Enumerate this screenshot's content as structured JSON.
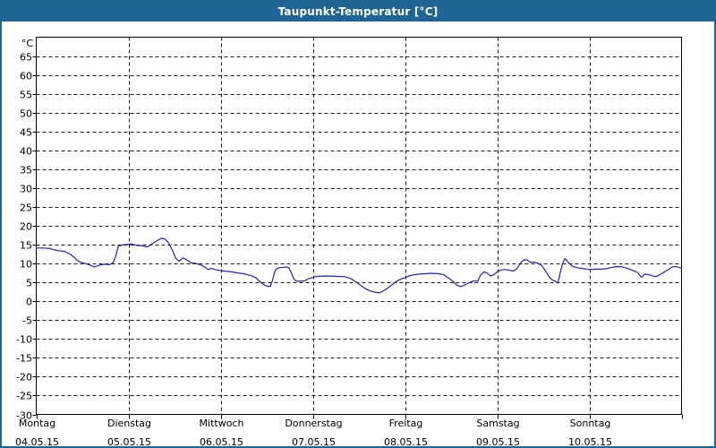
{
  "window": {
    "title": "Taupunkt-Temperatur [°C]"
  },
  "colors": {
    "titlebar_bg": "#1e6494",
    "titlebar_text": "#ffffff",
    "frame_border": "#1e6494",
    "page_bg": "#fbfefb",
    "plot_bg": "#fdfffd",
    "grid": "#1a1a1a",
    "axis": "#000000",
    "label_text": "#000000",
    "line": "#2121c1"
  },
  "chart_data": {
    "type": "line",
    "title": "Taupunkt-Temperatur [°C]",
    "xlabel": "",
    "ylabel": "°C",
    "ylim": [
      -30,
      70
    ],
    "ytick_start": -30,
    "ytick_end": 65,
    "ytick_step": 5,
    "yticks": [
      65,
      60,
      55,
      50,
      45,
      40,
      35,
      30,
      25,
      20,
      15,
      10,
      5,
      0,
      -5,
      -10,
      -15,
      -20,
      -25,
      -30
    ],
    "grid": "dashed",
    "legend": "none",
    "x_hours_total": 168,
    "x_days": [
      {
        "name": "Montag",
        "date": "04.05.15"
      },
      {
        "name": "Dienstag",
        "date": "05.05.15"
      },
      {
        "name": "Mittwoch",
        "date": "06.05.15"
      },
      {
        "name": "Donnerstag",
        "date": "07.05.15"
      },
      {
        "name": "Freitag",
        "date": "08.05.15"
      },
      {
        "name": "Samstag",
        "date": "09.05.15"
      },
      {
        "name": "Sonntag",
        "date": "10.05.15"
      }
    ],
    "series": [
      {
        "name": "Taupunkt-Temperatur",
        "color": "#2121c1",
        "points": [
          [
            0,
            14.1
          ],
          [
            1.9,
            14.1
          ],
          [
            3.5,
            14.0
          ],
          [
            4.7,
            13.6
          ],
          [
            5.8,
            13.4
          ],
          [
            7.4,
            13.2
          ],
          [
            8.8,
            12.5
          ],
          [
            9.8,
            11.7
          ],
          [
            10.7,
            10.8
          ],
          [
            11.6,
            10.3
          ],
          [
            12.8,
            10.0
          ],
          [
            14,
            9.6
          ],
          [
            15.1,
            9.1
          ],
          [
            16.3,
            9.5
          ],
          [
            17.7,
            9.8
          ],
          [
            19.1,
            9.7
          ],
          [
            20,
            10.2
          ],
          [
            20.7,
            12.0
          ],
          [
            21.4,
            14.6
          ],
          [
            22.3,
            14.9
          ],
          [
            23.3,
            15.0
          ],
          [
            24,
            15.1
          ],
          [
            24.9,
            15.2
          ],
          [
            26.1,
            14.8
          ],
          [
            27.5,
            14.7
          ],
          [
            28.9,
            14.4
          ],
          [
            30.3,
            15.3
          ],
          [
            31.7,
            16.2
          ],
          [
            32.6,
            16.7
          ],
          [
            33.5,
            16.5
          ],
          [
            34.4,
            15.5
          ],
          [
            35.4,
            13.6
          ],
          [
            36.3,
            11.4
          ],
          [
            37.2,
            10.6
          ],
          [
            38.2,
            11.5
          ],
          [
            39.1,
            11.0
          ],
          [
            40.3,
            10.2
          ],
          [
            41.7,
            10.0
          ],
          [
            43.1,
            9.5
          ],
          [
            44,
            9.0
          ],
          [
            44.7,
            8.4
          ],
          [
            45.6,
            8.7
          ],
          [
            46.5,
            8.4
          ],
          [
            47.9,
            8.1
          ],
          [
            48.9,
            8.0
          ],
          [
            50.8,
            7.8
          ],
          [
            52.4,
            7.5
          ],
          [
            54,
            7.3
          ],
          [
            55.9,
            6.8
          ],
          [
            57.1,
            6.3
          ],
          [
            58.2,
            5.2
          ],
          [
            59.2,
            4.4
          ],
          [
            60.3,
            3.9
          ],
          [
            61,
            4.0
          ],
          [
            61.5,
            5.5
          ],
          [
            62,
            7.5
          ],
          [
            62.4,
            8.5
          ],
          [
            63.3,
            8.9
          ],
          [
            64.3,
            9.0
          ],
          [
            65.2,
            9.1
          ],
          [
            65.7,
            8.9
          ],
          [
            66.3,
            7.8
          ],
          [
            66.8,
            6.5
          ],
          [
            67.3,
            5.6
          ],
          [
            68,
            5.3
          ],
          [
            68.7,
            5.3
          ],
          [
            69.8,
            5.4
          ],
          [
            71,
            6.0
          ],
          [
            72,
            6.3
          ],
          [
            73.3,
            6.6
          ],
          [
            75.6,
            6.7
          ],
          [
            78,
            6.6
          ],
          [
            80.3,
            6.5
          ],
          [
            81.9,
            6.0
          ],
          [
            83.1,
            5.2
          ],
          [
            84.2,
            4.4
          ],
          [
            85.6,
            3.4
          ],
          [
            86.8,
            2.8
          ],
          [
            88,
            2.4
          ],
          [
            89.4,
            2.2
          ],
          [
            90.8,
            3.0
          ],
          [
            92.4,
            4.2
          ],
          [
            93.8,
            5.3
          ],
          [
            95,
            5.9
          ],
          [
            96.1,
            6.3
          ],
          [
            97.3,
            6.8
          ],
          [
            98.4,
            7.0
          ],
          [
            99.6,
            7.2
          ],
          [
            101.2,
            7.3
          ],
          [
            102.9,
            7.4
          ],
          [
            104.7,
            7.3
          ],
          [
            105.9,
            7.1
          ],
          [
            107,
            6.4
          ],
          [
            108.2,
            5.5
          ],
          [
            109.4,
            4.4
          ],
          [
            110.3,
            3.9
          ],
          [
            111.2,
            4.1
          ],
          [
            112.4,
            4.8
          ],
          [
            113.6,
            5.3
          ],
          [
            115,
            5.4
          ],
          [
            115.7,
            7.0
          ],
          [
            116.6,
            7.8
          ],
          [
            117.5,
            7.4
          ],
          [
            118.2,
            6.7
          ],
          [
            119.1,
            7.0
          ],
          [
            120,
            7.8
          ],
          [
            120.9,
            8.3
          ],
          [
            122.1,
            8.4
          ],
          [
            123.3,
            8.2
          ],
          [
            124.2,
            8.0
          ],
          [
            125.1,
            8.6
          ],
          [
            126.3,
            10.4
          ],
          [
            127,
            11.0
          ],
          [
            127.9,
            10.9
          ],
          [
            128.6,
            10.3
          ],
          [
            129.6,
            10.4
          ],
          [
            130.5,
            10.1
          ],
          [
            131.6,
            9.5
          ],
          [
            132.6,
            8.0
          ],
          [
            133.5,
            6.5
          ],
          [
            134.4,
            5.6
          ],
          [
            135.4,
            5.2
          ],
          [
            135.8,
            4.8
          ],
          [
            136.5,
            8.0
          ],
          [
            137.2,
            10.5
          ],
          [
            137.7,
            11.3
          ],
          [
            138.6,
            10.2
          ],
          [
            139.5,
            9.3
          ],
          [
            140.7,
            8.9
          ],
          [
            142.1,
            8.7
          ],
          [
            144,
            8.4
          ],
          [
            145.4,
            8.5
          ],
          [
            147,
            8.5
          ],
          [
            148.4,
            8.6
          ],
          [
            149.8,
            9.0
          ],
          [
            151.2,
            9.2
          ],
          [
            152.6,
            9.1
          ],
          [
            154,
            8.7
          ],
          [
            155.4,
            8.1
          ],
          [
            156.6,
            7.6
          ],
          [
            157.3,
            6.6
          ],
          [
            157.7,
            6.4
          ],
          [
            158.4,
            7.2
          ],
          [
            159.3,
            7.1
          ],
          [
            160.2,
            6.8
          ],
          [
            161.4,
            6.5
          ],
          [
            162.8,
            7.3
          ],
          [
            164.2,
            8.2
          ],
          [
            165.6,
            9.1
          ],
          [
            166.7,
            9.2
          ],
          [
            168,
            8.7
          ]
        ]
      }
    ]
  }
}
